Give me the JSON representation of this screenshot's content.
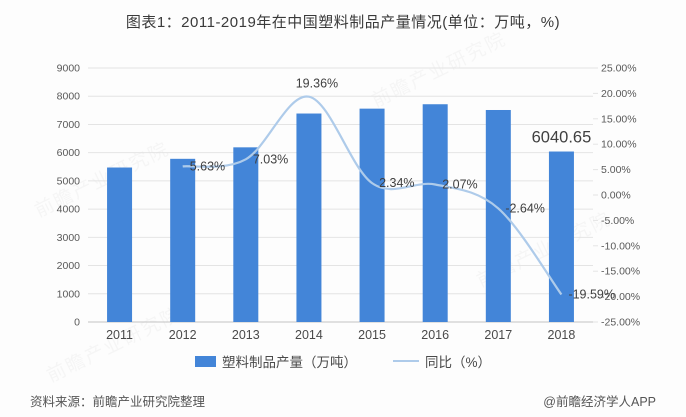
{
  "title": "图表1：2011-2019年在中国塑料制品产量情况(单位：万吨，%)",
  "watermark_text": "前瞻产业研究院",
  "legend": {
    "items": [
      {
        "label": "塑料制品产量（万吨）",
        "type": "bar"
      },
      {
        "label": "同比（%）",
        "type": "line"
      }
    ]
  },
  "footer": {
    "source": "资料来源：前瞻产业研究院整理",
    "credit": "@前瞻经济学人APP"
  },
  "colors": {
    "bar": "#4385d8",
    "line": "#aecbea",
    "grid": "#e4e4e4",
    "axis_line": "#c3c3c3",
    "axis_text": "#595959",
    "category_text": "#4a4a4a",
    "data_label": "#404040"
  },
  "chart_data": {
    "type": "bar",
    "subtype": "bar+line combo",
    "title": "图表1：2011-2019年在中国塑料制品产量情况(单位：万吨，%)",
    "categories": [
      "2011",
      "2012",
      "2013",
      "2014",
      "2015",
      "2016",
      "2017",
      "2018"
    ],
    "grid": true,
    "legend_position": "bottom",
    "left_axis": {
      "min": 0,
      "max": 9000,
      "step": 1000,
      "tick_labels": [
        "0",
        "1000",
        "2000",
        "3000",
        "4000",
        "5000",
        "6000",
        "7000",
        "8000",
        "9000"
      ]
    },
    "right_axis": {
      "min": -25,
      "max": 25,
      "step": 5,
      "tick_labels": [
        "-25.00%",
        "-20.00%",
        "-15.00%",
        "-10.00%",
        "-5.00%",
        "0.00%",
        "5.00%",
        "10.00%",
        "15.00%",
        "20.00%",
        "25.00%"
      ]
    },
    "series": [
      {
        "name": "塑料制品产量（万吨）",
        "type": "bar",
        "axis": "left",
        "values": [
          5474,
          5782,
          6189,
          7387,
          7560,
          7716,
          7512,
          6040.65
        ],
        "visible_labels": [
          null,
          null,
          null,
          null,
          null,
          null,
          null,
          "6040.65"
        ]
      },
      {
        "name": "同比（%）",
        "type": "line",
        "axis": "right",
        "values": [
          null,
          5.63,
          7.03,
          19.36,
          2.34,
          2.07,
          -2.64,
          -19.59
        ],
        "visible_labels": [
          null,
          "5.63%",
          "7.03%",
          "19.36%",
          "2.34%",
          "2.07%",
          "-2.64%",
          "-19.59%"
        ],
        "label_pos": [
          null,
          "right",
          "right",
          "above",
          "right",
          "right",
          "right",
          "right"
        ]
      }
    ]
  }
}
